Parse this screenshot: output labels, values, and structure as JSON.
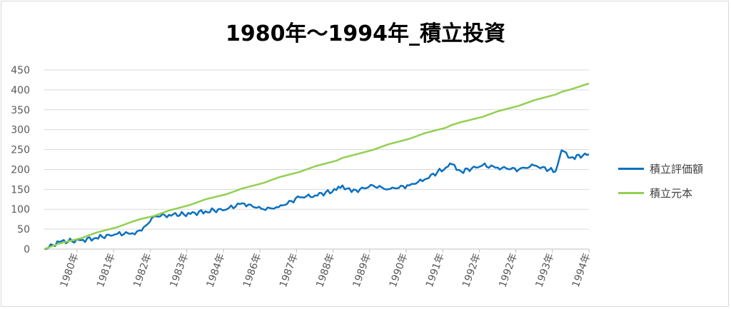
{
  "chart_data": {
    "type": "line",
    "title": "1980年～1994年_積立投資",
    "xlabel": "",
    "ylabel": "",
    "ylim": [
      0,
      450
    ],
    "y_ticks": [
      0,
      50,
      100,
      150,
      200,
      250,
      300,
      350,
      400,
      450
    ],
    "x_tick_labels": [
      "1980年",
      "1981年",
      "1982年",
      "1983年",
      "1984年",
      "1986年",
      "1987年",
      "1988年",
      "1989年",
      "1990年",
      "1991年",
      "1992年",
      "1992年",
      "1993年",
      "1994年"
    ],
    "grid": true,
    "legend": "right",
    "x": [
      "1980-01",
      "1980-06",
      "1981-01",
      "1981-06",
      "1982-01",
      "1982-06",
      "1982-09",
      "1983-01",
      "1983-06",
      "1984-01",
      "1984-06",
      "1985-01",
      "1985-06",
      "1986-01",
      "1986-06",
      "1987-01",
      "1987-06",
      "1988-01",
      "1988-03",
      "1988-06",
      "1989-01",
      "1989-06",
      "1990-01",
      "1990-06",
      "1991-01",
      "1991-03",
      "1991-06",
      "1992-01",
      "1992-06",
      "1993-01",
      "1993-06",
      "1994-01",
      "1994-03",
      "1994-06",
      "1994-12"
    ],
    "series": [
      {
        "name": "積立評価額",
        "color": "#0a70c0",
        "values": [
          0,
          18,
          22,
          28,
          38,
          40,
          46,
          82,
          86,
          88,
          95,
          100,
          115,
          100,
          105,
          130,
          135,
          148,
          160,
          143,
          160,
          150,
          160,
          175,
          205,
          213,
          195,
          210,
          205,
          200,
          210,
          195,
          248,
          230,
          238
        ]
      },
      {
        "name": "積立元本",
        "color": "#92d050",
        "values": [
          0,
          14,
          27,
          41,
          55,
          69,
          76,
          83,
          97,
          111,
          125,
          138,
          152,
          166,
          180,
          194,
          208,
          222,
          229,
          235,
          249,
          263,
          277,
          291,
          305,
          312,
          319,
          332,
          346,
          360,
          374,
          388,
          395,
          401,
          416
        ]
      }
    ]
  }
}
